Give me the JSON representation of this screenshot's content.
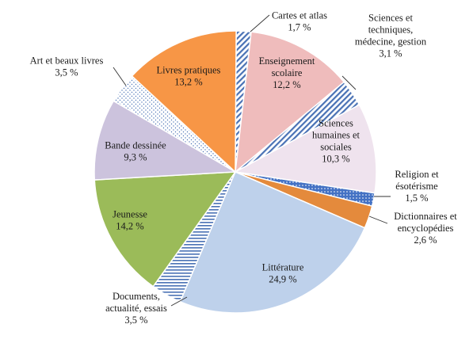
{
  "chart_data": {
    "type": "pie",
    "title": "",
    "slices": [
      {
        "label": [
          "Cartes et atlas"
        ],
        "value_label": "1,7 %",
        "value": 1.7,
        "color": "#4a72b5",
        "pattern": "stripes-blue"
      },
      {
        "label": [
          "Enseignement",
          "scolaire"
        ],
        "value_label": "12,2 %",
        "value": 12.2,
        "color": "#efbcbc",
        "pattern": ""
      },
      {
        "label": [
          "Sciences et",
          "techniques,",
          "médecine, gestion"
        ],
        "value_label": "3,1 %",
        "value": 3.1,
        "color": "#4a72b5",
        "pattern": "stripes-blue"
      },
      {
        "label": [
          "Sciences",
          "humaines et",
          "sociales"
        ],
        "value_label": "10,3 %",
        "value": 10.3,
        "color": "#efe3ee",
        "pattern": ""
      },
      {
        "label": [
          "Religion et",
          "ésotérisme"
        ],
        "value_label": "1,5 %",
        "value": 1.5,
        "color": "#4472c4",
        "pattern": "dots-blue"
      },
      {
        "label": [
          "Dictionnaires et",
          "encyclopédies"
        ],
        "value_label": "2,6 %",
        "value": 2.6,
        "color": "#e48a3c",
        "pattern": ""
      },
      {
        "label": [
          "Littérature"
        ],
        "value_label": "24,9 %",
        "value": 24.9,
        "color": "#bed1eb",
        "pattern": ""
      },
      {
        "label": [
          "Documents,",
          "actualité, essais"
        ],
        "value_label": "3,5 %",
        "value": 3.5,
        "color": "#4a72b5",
        "pattern": "hstripes-blue"
      },
      {
        "label": [
          "Jeunesse"
        ],
        "value_label": "14,2 %",
        "value": 14.2,
        "color": "#9bbb59",
        "pattern": ""
      },
      {
        "label": [
          "Bande dessinée"
        ],
        "value_label": "9,3 %",
        "value": 9.3,
        "color": "#ccc3dd",
        "pattern": ""
      },
      {
        "label": [
          "Art et beaux livres"
        ],
        "value_label": "3,5 %",
        "value": 3.5,
        "color": "#4a72b5",
        "pattern": "dots-sparse"
      },
      {
        "label": [
          "Livres pratiques"
        ],
        "value_label": "13,2 %",
        "value": 13.2,
        "color": "#f79646",
        "pattern": ""
      }
    ]
  }
}
